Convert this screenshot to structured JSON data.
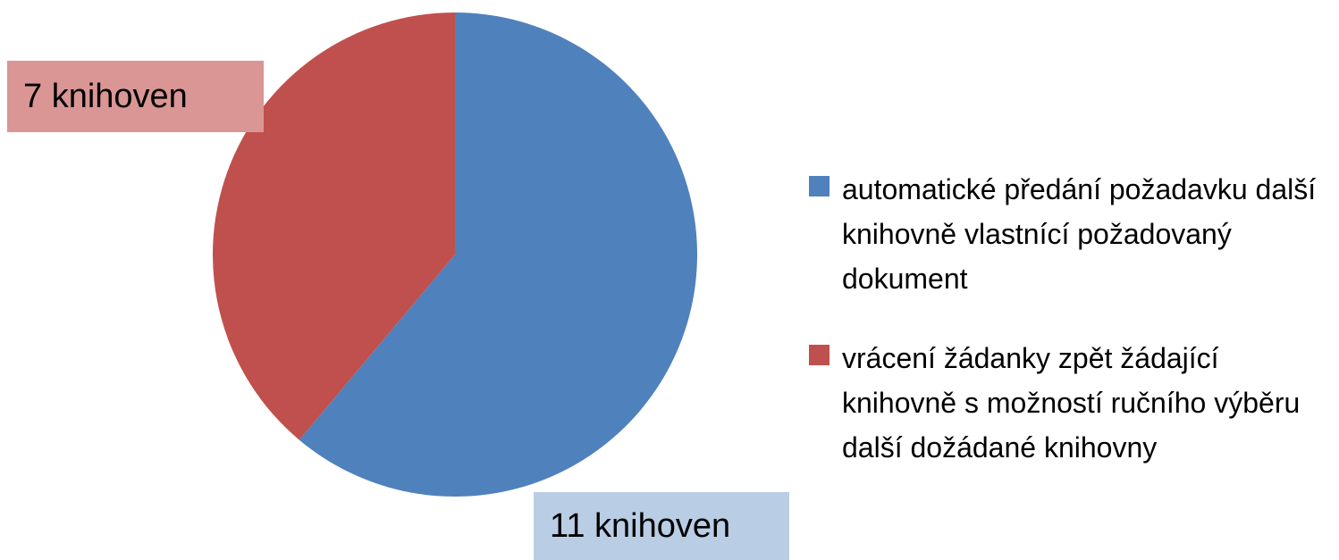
{
  "chart_data": {
    "type": "pie",
    "categories": [
      "automatické předání požadavku další knihovně vlastnící požadovaný dokument",
      "vrácení žádanky zpět žádající knihovně s možností ručního výběru další dožádané knihovny"
    ],
    "values": [
      11,
      7
    ],
    "value_labels": [
      "11 knihoven",
      "7 knihoven"
    ],
    "colors": [
      "#4f81bd",
      "#c0504d"
    ],
    "legend": "right"
  }
}
